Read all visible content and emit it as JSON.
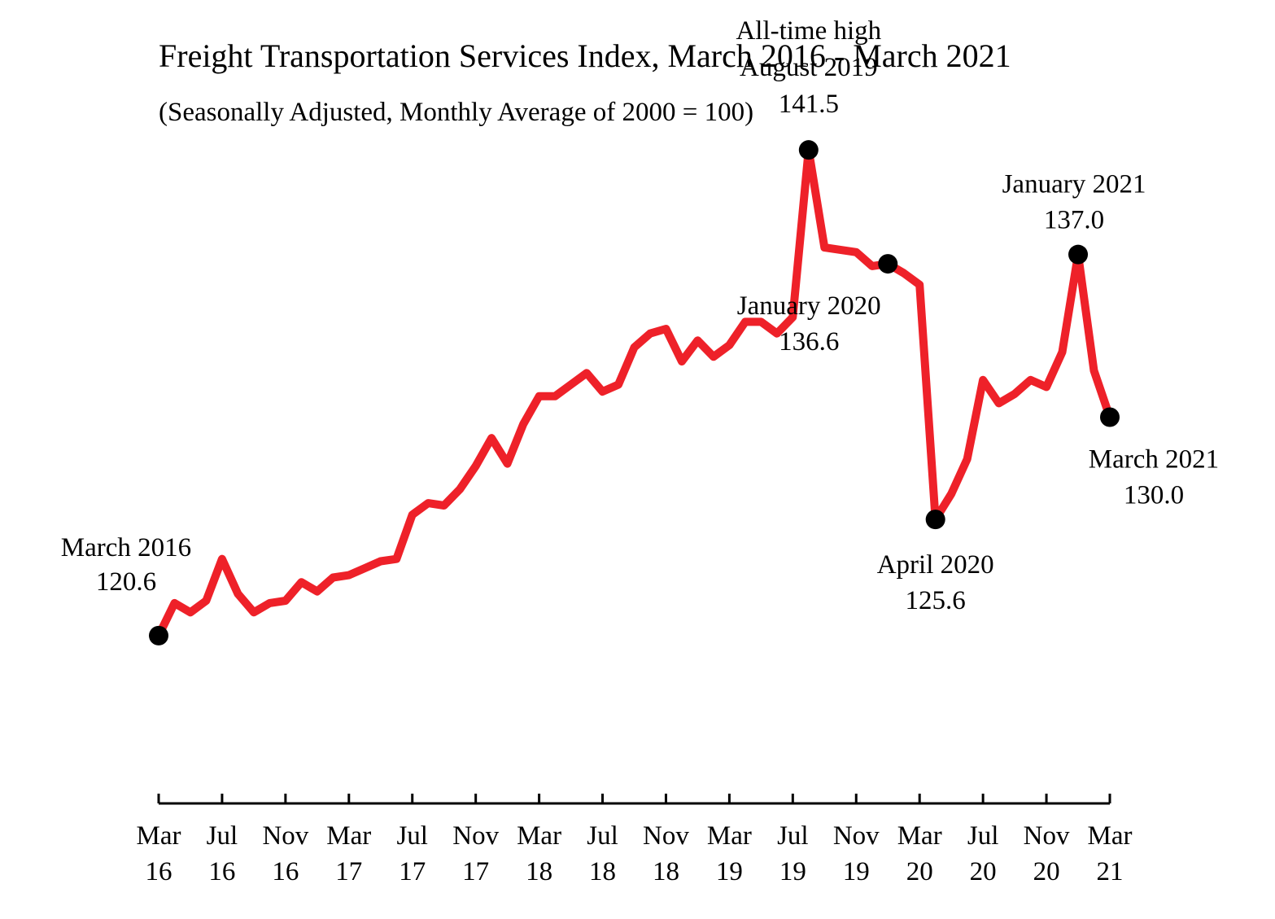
{
  "chart_data": {
    "type": "line",
    "title": "Freight Transportation Services Index, March 2016 - March 2021",
    "subtitle": "(Seasonally Adjusted, Monthly Average of 2000 = 100)",
    "xlabel": "",
    "ylabel": "",
    "ylim": [
      114,
      145
    ],
    "grid": false,
    "legend": "none",
    "colors": {
      "line": "#ee2129",
      "marker": "#000000",
      "axis": "#000000"
    },
    "x_ticks": [
      {
        "index": 0,
        "month": "Mar",
        "year": "16"
      },
      {
        "index": 4,
        "month": "Jul",
        "year": "16"
      },
      {
        "index": 8,
        "month": "Nov",
        "year": "16"
      },
      {
        "index": 12,
        "month": "Mar",
        "year": "17"
      },
      {
        "index": 16,
        "month": "Jul",
        "year": "17"
      },
      {
        "index": 20,
        "month": "Nov",
        "year": "17"
      },
      {
        "index": 24,
        "month": "Mar",
        "year": "18"
      },
      {
        "index": 28,
        "month": "Jul",
        "year": "18"
      },
      {
        "index": 32,
        "month": "Nov",
        "year": "18"
      },
      {
        "index": 36,
        "month": "Mar",
        "year": "19"
      },
      {
        "index": 40,
        "month": "Jul",
        "year": "19"
      },
      {
        "index": 44,
        "month": "Nov",
        "year": "19"
      },
      {
        "index": 48,
        "month": "Mar",
        "year": "20"
      },
      {
        "index": 52,
        "month": "Jul",
        "year": "20"
      },
      {
        "index": 56,
        "month": "Nov",
        "year": "20"
      },
      {
        "index": 60,
        "month": "Mar",
        "year": "21"
      }
    ],
    "series": [
      {
        "x": [
          "Mar 2016",
          "Apr 2016",
          "May 2016",
          "Jun 2016",
          "Jul 2016",
          "Aug 2016",
          "Sep 2016",
          "Oct 2016",
          "Nov 2016",
          "Dec 2016",
          "Jan 2017",
          "Feb 2017",
          "Mar 2017",
          "Apr 2017",
          "May 2017",
          "Jun 2017",
          "Jul 2017",
          "Aug 2017",
          "Sep 2017",
          "Oct 2017",
          "Nov 2017",
          "Dec 2017",
          "Jan 2018",
          "Feb 2018",
          "Mar 2018",
          "Apr 2018",
          "May 2018",
          "Jun 2018",
          "Jul 2018",
          "Aug 2018",
          "Sep 2018",
          "Oct 2018",
          "Nov 2018",
          "Dec 2018",
          "Jan 2019",
          "Feb 2019",
          "Mar 2019",
          "Apr 2019",
          "May 2019",
          "Jun 2019",
          "Jul 2019",
          "Aug 2019",
          "Sep 2019",
          "Oct 2019",
          "Nov 2019",
          "Dec 2019",
          "Jan 2020",
          "Feb 2020",
          "Mar 2020",
          "Apr 2020",
          "May 2020",
          "Jun 2020",
          "Jul 2020",
          "Aug 2020",
          "Sep 2020",
          "Oct 2020",
          "Nov 2020",
          "Dec 2020",
          "Jan 2021",
          "Feb 2021",
          "Mar 2021"
        ],
        "values": [
          120.6,
          122.0,
          121.6,
          122.1,
          123.9,
          122.4,
          121.6,
          122.0,
          122.1,
          122.9,
          122.5,
          123.1,
          123.2,
          123.5,
          123.8,
          123.9,
          125.8,
          126.3,
          126.2,
          126.9,
          127.9,
          129.1,
          128.0,
          129.7,
          130.9,
          130.9,
          131.4,
          131.9,
          131.1,
          131.4,
          133.0,
          133.6,
          133.8,
          132.4,
          133.3,
          132.6,
          133.1,
          134.1,
          134.1,
          133.6,
          134.3,
          141.5,
          137.3,
          137.2,
          137.1,
          136.5,
          136.6,
          136.2,
          135.7,
          125.6,
          126.7,
          128.2,
          131.6,
          130.6,
          131.0,
          131.6,
          131.3,
          132.8,
          137.0,
          132.0,
          130.0
        ]
      }
    ],
    "annotations": [
      {
        "index": 0,
        "lines": [
          "March 2016",
          "120.6"
        ]
      },
      {
        "index": 41,
        "lines": [
          "All-time high",
          "August 2019",
          "141.5"
        ]
      },
      {
        "index": 46,
        "lines": [
          "January 2020",
          "136.6"
        ]
      },
      {
        "index": 49,
        "lines": [
          "April 2020",
          "125.6"
        ]
      },
      {
        "index": 58,
        "lines": [
          "January 2021",
          "137.0"
        ]
      },
      {
        "index": 60,
        "lines": [
          "March 2021",
          "130.0"
        ]
      }
    ]
  }
}
